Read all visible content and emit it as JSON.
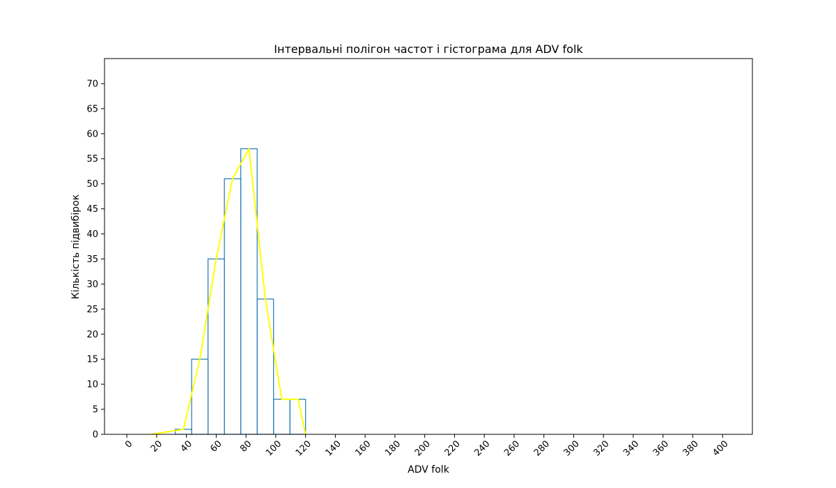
{
  "chart_data": {
    "type": "bar",
    "title": "Інтервальні полігон частот і гістограма для ADV folk",
    "xlabel": "ADV folk",
    "ylabel": "Кількість підвибірок",
    "xlim": [
      -15,
      420
    ],
    "ylim": [
      0,
      75
    ],
    "x_ticks": [
      0,
      20,
      40,
      60,
      80,
      100,
      120,
      140,
      160,
      180,
      200,
      220,
      240,
      260,
      280,
      300,
      320,
      340,
      360,
      380,
      400
    ],
    "y_ticks": [
      0,
      5,
      10,
      15,
      20,
      25,
      30,
      35,
      40,
      45,
      50,
      55,
      60,
      65,
      70
    ],
    "histogram": {
      "bin_edges": [
        32.5,
        43.5,
        54.5,
        65.5,
        76.5,
        87.5,
        98.5,
        109.5,
        120.0
      ],
      "counts": [
        1,
        15,
        35,
        51,
        57,
        27,
        7,
        7
      ],
      "color": "#1f77b4"
    },
    "polygon": {
      "x": [
        16.5,
        38,
        49,
        60,
        71,
        82,
        93,
        104,
        115,
        120
      ],
      "y": [
        0,
        1,
        15,
        35,
        51,
        57,
        27,
        7,
        7,
        0
      ],
      "color": "#ffff00"
    },
    "grid": false
  }
}
